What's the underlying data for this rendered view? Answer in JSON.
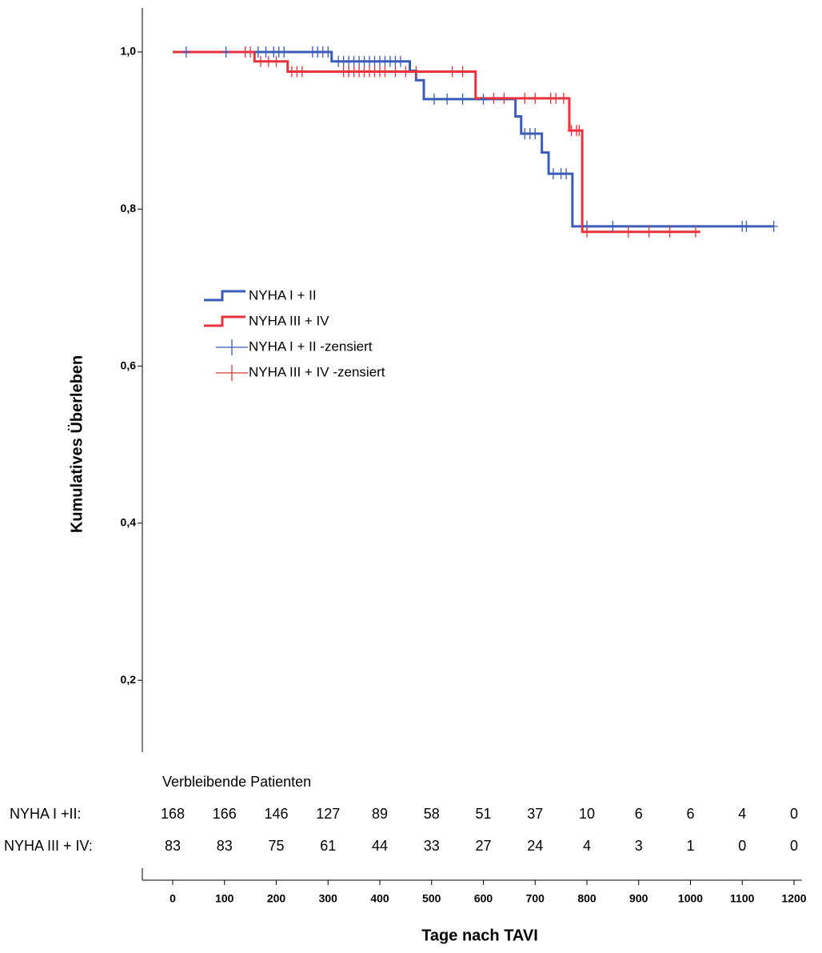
{
  "chart_data": {
    "type": "step",
    "y_label": "Kumulatives Überleben",
    "x_label": "Tage nach TAVI",
    "xlim": [
      -59,
      1215
    ],
    "ylim": [
      0.1,
      1.05
    ],
    "xticks": [
      0,
      100,
      200,
      300,
      400,
      500,
      600,
      700,
      800,
      900,
      1000,
      1100,
      1200
    ],
    "yticks": [
      {
        "value": 0.2,
        "label": "0,2"
      },
      {
        "value": 0.4,
        "label": "0,4"
      },
      {
        "value": 0.6,
        "label": "0,6"
      },
      {
        "value": 0.8,
        "label": "0,8"
      },
      {
        "value": 1.0,
        "label": "1,0"
      }
    ],
    "series": [
      {
        "name": "NYHA I + II",
        "style": "step",
        "color": "#3b5cb8",
        "x": [
          0,
          307,
          458,
          470,
          485,
          662,
          673,
          713,
          726,
          772,
          1161
        ],
        "values": [
          1.0,
          0.988,
          0.976,
          0.964,
          0.94,
          0.918,
          0.896,
          0.872,
          0.845,
          0.778,
          0.778
        ]
      },
      {
        "name": "NYHA III + IV",
        "style": "step",
        "color": "#e8333c",
        "x": [
          0,
          158,
          222,
          585,
          766,
          791,
          1019
        ],
        "values": [
          1.0,
          0.988,
          0.975,
          0.941,
          0.9,
          0.771,
          0.771
        ]
      },
      {
        "name": "NYHA I + II -zensiert",
        "style": "censor",
        "color": "#3b5cb8",
        "x": [
          26,
          103,
          140,
          165,
          180,
          195,
          205,
          215,
          270,
          280,
          290,
          300,
          320,
          330,
          340,
          350,
          360,
          370,
          380,
          390,
          400,
          410,
          420,
          430,
          440,
          505,
          530,
          560,
          600,
          680,
          690,
          700,
          735,
          750,
          760,
          800,
          850,
          1100,
          1108,
          1161
        ],
        "values": [
          1.0,
          1.0,
          1.0,
          1.0,
          1.0,
          1.0,
          1.0,
          1.0,
          1.0,
          1.0,
          1.0,
          1.0,
          0.988,
          0.988,
          0.988,
          0.988,
          0.988,
          0.988,
          0.988,
          0.988,
          0.988,
          0.988,
          0.988,
          0.988,
          0.988,
          0.94,
          0.94,
          0.94,
          0.94,
          0.896,
          0.896,
          0.896,
          0.845,
          0.845,
          0.845,
          0.778,
          0.778,
          0.778,
          0.778,
          0.778
        ]
      },
      {
        "name": "NYHA III + IV -zensiert",
        "style": "censor",
        "color": "#e8333c",
        "x": [
          140,
          150,
          170,
          185,
          200,
          230,
          240,
          250,
          330,
          340,
          350,
          360,
          370,
          380,
          390,
          400,
          410,
          430,
          450,
          470,
          540,
          560,
          620,
          640,
          680,
          700,
          730,
          740,
          755,
          770,
          780,
          785,
          800,
          880,
          920,
          960,
          1010
        ],
        "values": [
          1.0,
          1.0,
          0.988,
          0.988,
          0.988,
          0.975,
          0.975,
          0.975,
          0.975,
          0.975,
          0.975,
          0.975,
          0.975,
          0.975,
          0.975,
          0.975,
          0.975,
          0.975,
          0.975,
          0.975,
          0.975,
          0.975,
          0.941,
          0.941,
          0.941,
          0.941,
          0.941,
          0.941,
          0.941,
          0.9,
          0.9,
          0.9,
          0.771,
          0.771,
          0.771,
          0.771,
          0.771
        ]
      }
    ],
    "risk_table": {
      "title": "Verbleibende Patienten",
      "rows": [
        {
          "label": "NYHA I +II:",
          "values": [
            168,
            166,
            146,
            127,
            89,
            58,
            51,
            37,
            10,
            6,
            6,
            4,
            0
          ]
        },
        {
          "label": "NYHA III + IV:",
          "values": [
            83,
            83,
            75,
            61,
            44,
            33,
            27,
            24,
            4,
            3,
            1,
            0,
            0
          ]
        }
      ]
    }
  }
}
